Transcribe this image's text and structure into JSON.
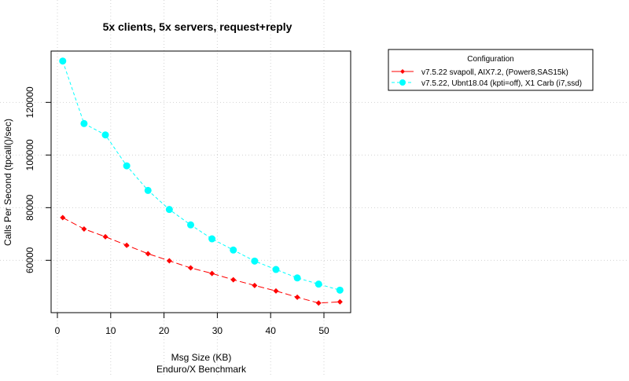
{
  "chart_data": {
    "type": "line",
    "title": "5x clients, 5x servers, request+reply",
    "xlabel": "Msg Size (KB)",
    "subtitle": "Enduro/X Benchmark",
    "ylabel": "Calls Per Second (tpcall()/sec)",
    "xlim": [
      0,
      54
    ],
    "ylim": [
      40100,
      139500
    ],
    "xticks": [
      0,
      10,
      20,
      30,
      40,
      50
    ],
    "yticks": [
      60000,
      80000,
      100000,
      120000
    ],
    "grid": true,
    "legend": {
      "title": "Configuration",
      "placement": "right"
    },
    "x": [
      1,
      5,
      9,
      13,
      17,
      21,
      25,
      29,
      33,
      37,
      41,
      45,
      49,
      53
    ],
    "series": [
      {
        "name": "v7.5.22 svapoll, AIX7.2, (Power8,SAS15k)",
        "color": "#ff0000",
        "marker": "diamond",
        "values": [
          76200,
          71900,
          68950,
          65700,
          62500,
          59800,
          57100,
          55000,
          52600,
          50450,
          48350,
          45950,
          43750,
          44200
        ]
      },
      {
        "name": "v7.5.22, Ubnt18.04 (kpti=off), X1 Carb (i7,ssd)",
        "color": "#00ffff",
        "marker": "circle",
        "values": [
          135700,
          111950,
          107650,
          95900,
          86550,
          79300,
          73450,
          68150,
          63900,
          59700,
          56500,
          53300,
          50950,
          48650
        ]
      }
    ]
  }
}
